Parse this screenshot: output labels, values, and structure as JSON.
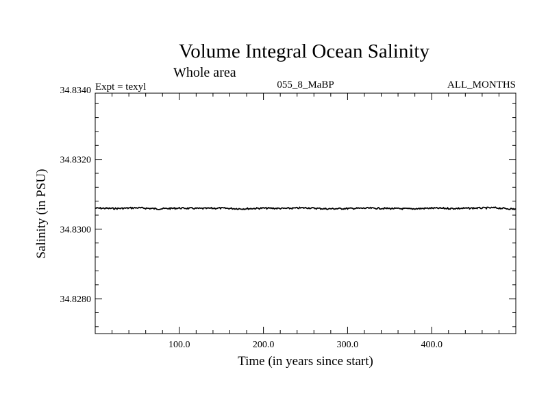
{
  "chart_data": {
    "type": "line",
    "title": "Volume Integral Ocean Salinity",
    "subtitle": "Whole area",
    "header_left": "Expt = texyl",
    "header_center": "055_8_MaBP",
    "header_right": "ALL_MONTHS",
    "xlabel": "Time (in years since start)",
    "ylabel": "Salinity (in PSU)",
    "xlim": [
      0,
      500
    ],
    "ylim": [
      34.827,
      34.8339
    ],
    "x_ticks": [
      100,
      200,
      300,
      400
    ],
    "x_tick_labels": [
      "100.0",
      "200.0",
      "300.0",
      "400.0"
    ],
    "y_ticks": [
      34.828,
      34.83,
      34.832,
      34.834
    ],
    "y_tick_labels": [
      "34.8280",
      "34.8300",
      "34.8320",
      "34.8340"
    ],
    "grid": false,
    "series": [
      {
        "x": [
          0,
          25,
          50,
          75,
          100,
          125,
          150,
          175,
          200,
          225,
          250,
          275,
          300,
          325,
          350,
          375,
          400,
          425,
          450,
          475,
          500
        ],
        "y": [
          34.8306,
          34.83059,
          34.83061,
          34.83058,
          34.8306,
          34.83059,
          34.8306,
          34.83058,
          34.8306,
          34.83059,
          34.83061,
          34.83058,
          34.83059,
          34.8306,
          34.83059,
          34.83058,
          34.8306,
          34.83059,
          34.8306,
          34.83061,
          34.83057
        ]
      }
    ]
  }
}
